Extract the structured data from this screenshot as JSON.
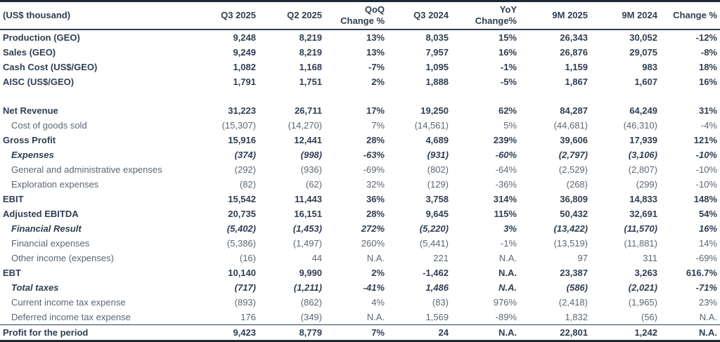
{
  "meta": {
    "unit_label": "(US$ thousand)",
    "colors": {
      "text_primary": "#2f3e52",
      "text_secondary": "#5c6673",
      "border_heavy": "#1c2834",
      "border_light": "#2f3e52"
    }
  },
  "columns": [
    {
      "label": "(US$ thousand)"
    },
    {
      "label": "Q3 2025"
    },
    {
      "label": "Q2 2025"
    },
    {
      "label": "QoQ\nChange %"
    },
    {
      "label": "Q3 2024"
    },
    {
      "label": "YoY\nChange%"
    },
    {
      "label": "9M 2025"
    },
    {
      "label": "9M 2024"
    },
    {
      "label": "Change %"
    }
  ],
  "rows": [
    {
      "label": "Production (GEO)",
      "style": "bold",
      "indent": false,
      "values": [
        "9,248",
        "8,219",
        "13%",
        "8,035",
        "15%",
        "26,343",
        "30,052",
        "-12%"
      ]
    },
    {
      "label": "Sales (GEO)",
      "style": "bold",
      "indent": false,
      "values": [
        "9,249",
        "8,219",
        "13%",
        "7,957",
        "16%",
        "26,876",
        "29,075",
        "-8%"
      ]
    },
    {
      "label": "Cash Cost (US$/GEO)",
      "style": "bold",
      "indent": false,
      "values": [
        "1,082",
        "1,168",
        "-7%",
        "1,095",
        "-1%",
        "1,159",
        "983",
        "18%"
      ]
    },
    {
      "label": "AISC (US$/GEO)",
      "style": "bold",
      "indent": false,
      "values": [
        "1,791",
        "1,751",
        "2%",
        "1,888",
        "-5%",
        "1,867",
        "1,607",
        "16%"
      ]
    },
    {
      "label": "",
      "style": "spacer",
      "indent": false,
      "values": [
        "",
        "",
        "",
        "",
        "",
        "",
        "",
        ""
      ]
    },
    {
      "label": "Net Revenue",
      "style": "bold",
      "indent": false,
      "values": [
        "31,223",
        "26,711",
        "17%",
        "19,250",
        "62%",
        "84,287",
        "64,249",
        "31%"
      ]
    },
    {
      "label": "Cost of goods sold",
      "style": "regular",
      "indent": true,
      "values": [
        "(15,307)",
        "(14,270)",
        "7%",
        "(14,561)",
        "5%",
        "(44,681)",
        "(46,310)",
        "-4%"
      ]
    },
    {
      "label": "Gross Profit",
      "style": "bold",
      "indent": false,
      "values": [
        "15,916",
        "12,441",
        "28%",
        "4,689",
        "239%",
        "39,606",
        "17,939",
        "121%"
      ]
    },
    {
      "label": "Expenses",
      "style": "bold-italic",
      "indent": true,
      "values": [
        "(374)",
        "(998)",
        "-63%",
        "(931)",
        "-60%",
        "(2,797)",
        "(3,106)",
        "-10%"
      ]
    },
    {
      "label": "General and administrative expenses",
      "style": "regular",
      "indent": true,
      "values": [
        "(292)",
        "(936)",
        "-69%",
        "(802)",
        "-64%",
        "(2,529)",
        "(2,807)",
        "-10%"
      ]
    },
    {
      "label": "Exploration expenses",
      "style": "regular",
      "indent": true,
      "values": [
        "(82)",
        "(62)",
        "32%",
        "(129)",
        "-36%",
        "(268)",
        "(299)",
        "-10%"
      ]
    },
    {
      "label": "EBIT",
      "style": "bold",
      "indent": false,
      "values": [
        "15,542",
        "11,443",
        "36%",
        "3,758",
        "314%",
        "36,809",
        "14,833",
        "148%"
      ]
    },
    {
      "label": "Adjusted EBITDA",
      "style": "bold",
      "indent": false,
      "values": [
        "20,735",
        "16,151",
        "28%",
        "9,645",
        "115%",
        "50,432",
        "32,691",
        "54%"
      ]
    },
    {
      "label": "Financial Result",
      "style": "bold-italic",
      "indent": true,
      "values": [
        "(5,402)",
        "(1,453)",
        "272%",
        "(5,220)",
        "3%",
        "(13,422)",
        "(11,570)",
        "16%"
      ]
    },
    {
      "label": "Financial expenses",
      "style": "regular",
      "indent": true,
      "values": [
        "(5,386)",
        "(1,497)",
        "260%",
        "(5,441)",
        "-1%",
        "(13,519)",
        "(11,881)",
        "14%"
      ]
    },
    {
      "label": "Other income (expenses)",
      "style": "regular",
      "indent": true,
      "values": [
        "(16)",
        "44",
        "N.A.",
        "221",
        "N.A.",
        "97",
        "311",
        "-69%"
      ]
    },
    {
      "label": "EBT",
      "style": "bold",
      "indent": false,
      "values": [
        "10,140",
        "9,990",
        "2%",
        "-1,462",
        "N.A.",
        "23,387",
        "3,263",
        "616.7%"
      ]
    },
    {
      "label": "Total taxes",
      "style": "bold-italic",
      "indent": true,
      "values": [
        "(717)",
        "(1,211)",
        "-41%",
        "1,486",
        "N.A.",
        "(586)",
        "(2,021)",
        "-71%"
      ]
    },
    {
      "label": "Current income tax expense",
      "style": "regular",
      "indent": true,
      "values": [
        "(893)",
        "(862)",
        "4%",
        "(83)",
        "976%",
        "(2,418)",
        "(1,965)",
        "23%"
      ]
    },
    {
      "label": "Deferred income tax expense",
      "style": "regular",
      "indent": true,
      "values": [
        "176",
        "(349)",
        "N.A.",
        "1,569",
        "-89%",
        "1,832",
        "(56)",
        "N.A."
      ]
    },
    {
      "label": "Profit for the period",
      "style": "bold",
      "indent": false,
      "total": true,
      "values": [
        "9,423",
        "8,779",
        "7%",
        "24",
        "N.A.",
        "22,801",
        "1,242",
        "N.A."
      ]
    }
  ],
  "chart_data": {
    "type": "table",
    "title": "Quarterly and nine-month financial results (US$ thousand)",
    "columns": [
      "(US$ thousand)",
      "Q3 2025",
      "Q2 2025",
      "QoQ Change %",
      "Q3 2024",
      "YoY Change%",
      "9M 2025",
      "9M 2024",
      "Change %"
    ],
    "rows": [
      [
        "Production (GEO)",
        "9,248",
        "8,219",
        "13%",
        "8,035",
        "15%",
        "26,343",
        "30,052",
        "-12%"
      ],
      [
        "Sales (GEO)",
        "9,249",
        "8,219",
        "13%",
        "7,957",
        "16%",
        "26,876",
        "29,075",
        "-8%"
      ],
      [
        "Cash Cost (US$/GEO)",
        "1,082",
        "1,168",
        "-7%",
        "1,095",
        "-1%",
        "1,159",
        "983",
        "18%"
      ],
      [
        "AISC (US$/GEO)",
        "1,791",
        "1,751",
        "2%",
        "1,888",
        "-5%",
        "1,867",
        "1,607",
        "16%"
      ],
      [
        "Net Revenue",
        "31,223",
        "26,711",
        "17%",
        "19,250",
        "62%",
        "84,287",
        "64,249",
        "31%"
      ],
      [
        "Cost of goods sold",
        "(15,307)",
        "(14,270)",
        "7%",
        "(14,561)",
        "5%",
        "(44,681)",
        "(46,310)",
        "-4%"
      ],
      [
        "Gross Profit",
        "15,916",
        "12,441",
        "28%",
        "4,689",
        "239%",
        "39,606",
        "17,939",
        "121%"
      ],
      [
        "Expenses",
        "(374)",
        "(998)",
        "-63%",
        "(931)",
        "-60%",
        "(2,797)",
        "(3,106)",
        "-10%"
      ],
      [
        "General and administrative expenses",
        "(292)",
        "(936)",
        "-69%",
        "(802)",
        "-64%",
        "(2,529)",
        "(2,807)",
        "-10%"
      ],
      [
        "Exploration expenses",
        "(82)",
        "(62)",
        "32%",
        "(129)",
        "-36%",
        "(268)",
        "(299)",
        "-10%"
      ],
      [
        "EBIT",
        "15,542",
        "11,443",
        "36%",
        "3,758",
        "314%",
        "36,809",
        "14,833",
        "148%"
      ],
      [
        "Adjusted EBITDA",
        "20,735",
        "16,151",
        "28%",
        "9,645",
        "115%",
        "50,432",
        "32,691",
        "54%"
      ],
      [
        "Financial Result",
        "(5,402)",
        "(1,453)",
        "272%",
        "(5,220)",
        "3%",
        "(13,422)",
        "(11,570)",
        "16%"
      ],
      [
        "Financial expenses",
        "(5,386)",
        "(1,497)",
        "260%",
        "(5,441)",
        "-1%",
        "(13,519)",
        "(11,881)",
        "14%"
      ],
      [
        "Other income (expenses)",
        "(16)",
        "44",
        "N.A.",
        "221",
        "N.A.",
        "97",
        "311",
        "-69%"
      ],
      [
        "EBT",
        "10,140",
        "9,990",
        "2%",
        "-1,462",
        "N.A.",
        "23,387",
        "3,263",
        "616.7%"
      ],
      [
        "Total taxes",
        "(717)",
        "(1,211)",
        "-41%",
        "1,486",
        "N.A.",
        "(586)",
        "(2,021)",
        "-71%"
      ],
      [
        "Current income tax expense",
        "(893)",
        "(862)",
        "4%",
        "(83)",
        "976%",
        "(2,418)",
        "(1,965)",
        "23%"
      ],
      [
        "Deferred income tax expense",
        "176",
        "(349)",
        "N.A.",
        "1,569",
        "-89%",
        "1,832",
        "(56)",
        "N.A."
      ],
      [
        "Profit for the period",
        "9,423",
        "8,779",
        "7%",
        "24",
        "N.A.",
        "22,801",
        "1,242",
        "N.A."
      ]
    ]
  }
}
